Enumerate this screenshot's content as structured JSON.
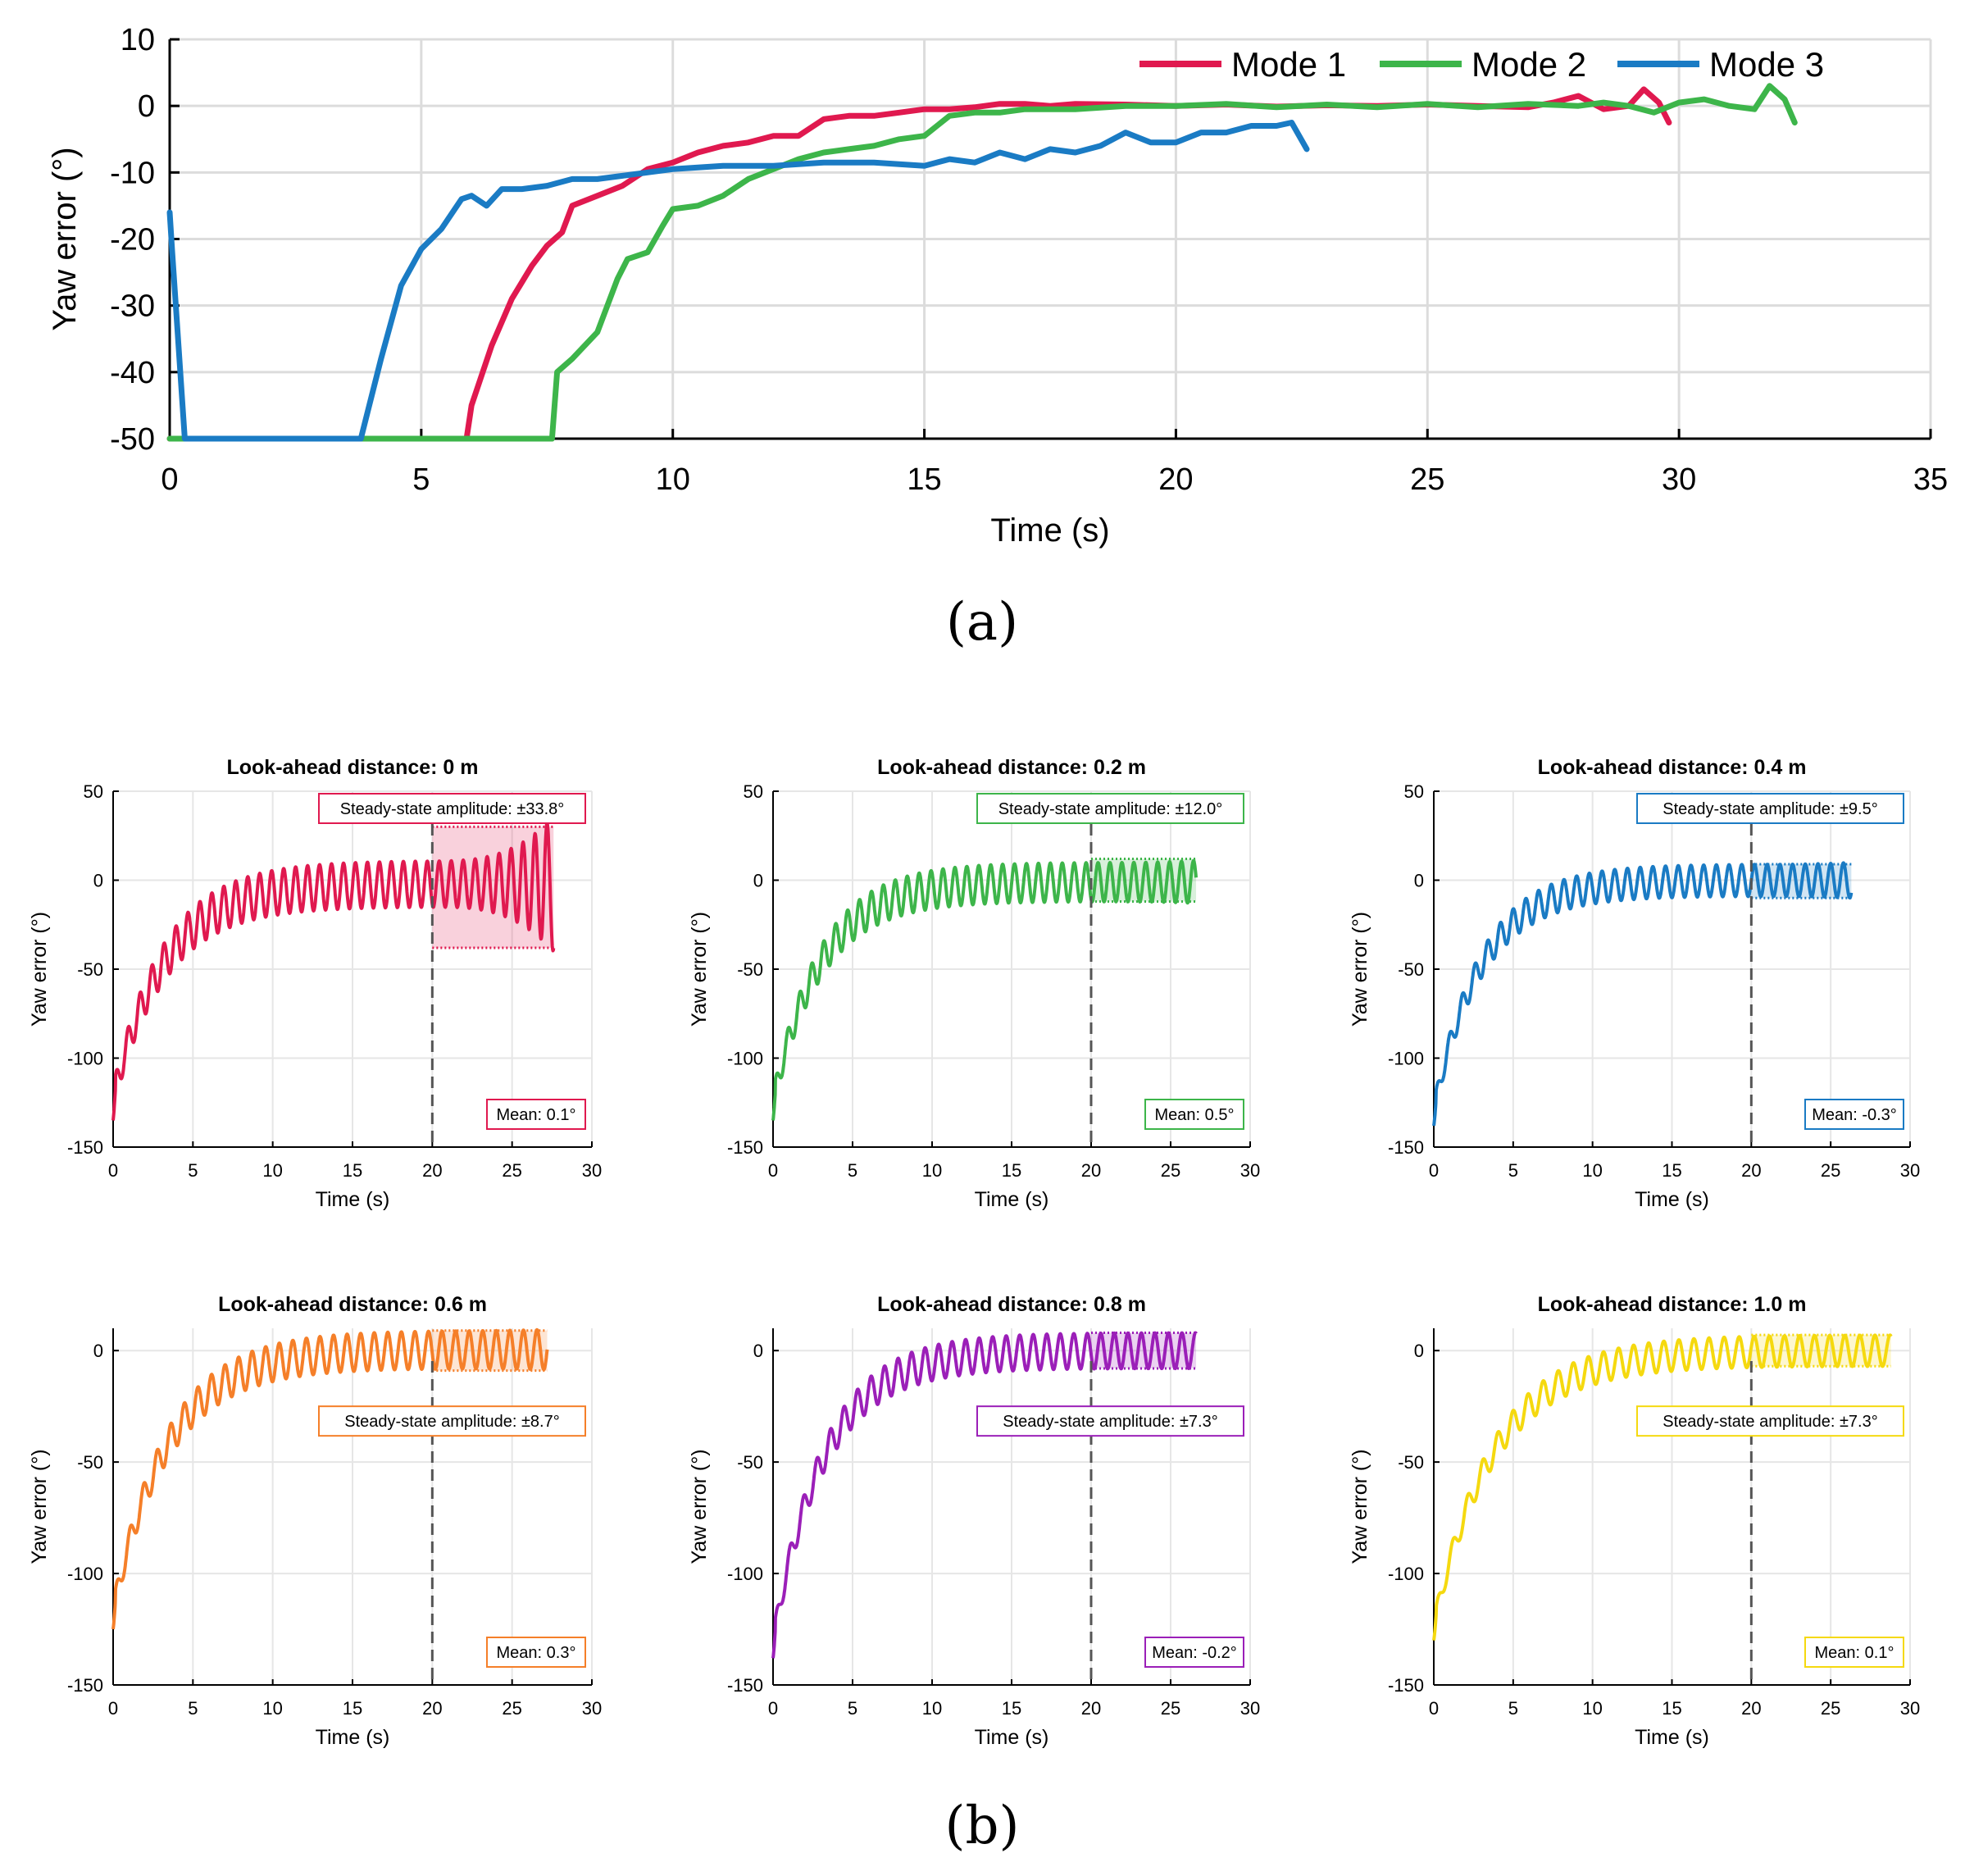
{
  "figure": {
    "label_a": "(a)",
    "label_b": "(b)"
  },
  "colors": {
    "mode1": "#e0194f",
    "mode2": "#3db54a",
    "mode3": "#1a7bc4",
    "sub": [
      "#e0194f",
      "#3db54a",
      "#1a7bc4",
      "#f57f29",
      "#9b1fb8",
      "#f5d90f"
    ],
    "grid": "#dcdcdc",
    "axis": "#000000"
  },
  "chart_data": [
    {
      "id": "a",
      "type": "line",
      "xlabel": "Time (s)",
      "ylabel": "Yaw error (°)",
      "xlim": [
        0,
        35
      ],
      "ylim": [
        -50,
        10
      ],
      "xticks": [
        0,
        5,
        10,
        15,
        20,
        25,
        30,
        35
      ],
      "yticks": [
        10,
        0,
        -10,
        -20,
        -30,
        -40,
        -50
      ],
      "grid": true,
      "legend": {
        "position": "top-right",
        "entries": [
          "Mode 1",
          "Mode 2",
          "Mode 3"
        ]
      },
      "series": [
        {
          "name": "Mode 1",
          "x": [
            0,
            0.2,
            5.9,
            6.0,
            6.4,
            6.8,
            7.2,
            7.5,
            7.8,
            8.0,
            8.5,
            9.0,
            9.5,
            10.0,
            10.5,
            11.0,
            11.5,
            12.0,
            12.5,
            13.0,
            13.5,
            14.0,
            14.5,
            15.0,
            15.5,
            16.0,
            16.5,
            17.0,
            17.5,
            18.0,
            19.0,
            20.0,
            21.0,
            22.0,
            23.0,
            24.0,
            25.0,
            26.0,
            27.0,
            27.5,
            28.0,
            28.5,
            29.0,
            29.3,
            29.6,
            29.8
          ],
          "y": [
            -50,
            -50,
            -50,
            -45,
            -36,
            -29,
            -24,
            -21,
            -19,
            -15,
            -13.5,
            -12,
            -9.5,
            -8.5,
            -7,
            -6,
            -5.5,
            -4.5,
            -4.5,
            -2,
            -1.5,
            -1.5,
            -1,
            -0.5,
            -0.5,
            -0.2,
            0.3,
            0.3,
            0,
            0.3,
            0.2,
            0,
            0.2,
            -0.1,
            0.1,
            0,
            0.2,
            0,
            -0.2,
            0.5,
            1.5,
            -0.5,
            0,
            2.5,
            0.5,
            -2.5
          ]
        },
        {
          "name": "Mode 2",
          "x": [
            0,
            0.3,
            7.6,
            7.7,
            8.0,
            8.5,
            8.9,
            9.1,
            9.5,
            9.8,
            10.0,
            10.5,
            11.0,
            11.5,
            12.0,
            12.5,
            13.0,
            13.5,
            14.0,
            14.5,
            15.0,
            15.5,
            16.0,
            16.5,
            17.0,
            18.0,
            19.0,
            20.0,
            21.0,
            22.0,
            23.0,
            24.0,
            25.0,
            26.0,
            27.0,
            28.0,
            28.5,
            29.0,
            29.5,
            30.0,
            30.5,
            31.0,
            31.5,
            31.8,
            32.1,
            32.3
          ],
          "y": [
            -50,
            -50,
            -50,
            -40,
            -38,
            -34,
            -26,
            -23,
            -22,
            -18,
            -15.5,
            -15,
            -13.5,
            -11,
            -9.5,
            -8,
            -7,
            -6.5,
            -6,
            -5,
            -4.5,
            -1.5,
            -1,
            -1,
            -0.5,
            -0.5,
            0,
            0,
            0.3,
            -0.2,
            0.2,
            -0.2,
            0.3,
            -0.2,
            0.3,
            0,
            0.5,
            0,
            -1,
            0.5,
            1,
            0,
            -0.5,
            3,
            1,
            -2.5
          ]
        },
        {
          "name": "Mode 3",
          "x": [
            0,
            0.05,
            0.3,
            0.5,
            3.8,
            4.2,
            4.6,
            5.0,
            5.4,
            5.8,
            6.0,
            6.3,
            6.6,
            7.0,
            7.5,
            8.0,
            8.5,
            9.0,
            9.5,
            10.0,
            11.0,
            12.0,
            13.0,
            14.0,
            15.0,
            15.5,
            16.0,
            16.5,
            17.0,
            17.5,
            18.0,
            18.5,
            19.0,
            19.5,
            20.0,
            20.5,
            21.0,
            21.5,
            22.0,
            22.3,
            22.6
          ],
          "y": [
            -16,
            -22,
            -50,
            -50,
            -50,
            -38,
            -27,
            -21.5,
            -18.5,
            -14,
            -13.5,
            -15,
            -12.5,
            -12.5,
            -12,
            -11,
            -11,
            -10.5,
            -10,
            -9.5,
            -9,
            -9,
            -8.5,
            -8.5,
            -9,
            -8,
            -8.5,
            -7,
            -8,
            -6.5,
            -7,
            -6,
            -4,
            -5.5,
            -5.5,
            -4,
            -4,
            -3,
            -3,
            -2.5,
            -6.5
          ]
        }
      ]
    },
    {
      "id": "b1",
      "type": "line",
      "title": "Look-ahead distance: 0 m",
      "xlabel": "Time (s)",
      "ylabel": "Yaw error (°)",
      "xlim": [
        0,
        30
      ],
      "ylim": [
        -150,
        50
      ],
      "xticks": [
        0,
        5,
        10,
        15,
        20,
        25,
        30
      ],
      "yticks": [
        50,
        0,
        -50,
        -100,
        -150
      ],
      "y_start": -135,
      "envelope_max": 11,
      "envelope_min": -15,
      "tau": 3.2,
      "period": 0.75,
      "t_end": 27.6,
      "steady_start": 20,
      "steady_max": 30,
      "steady_min": -38,
      "amp_text": "Steady-state amplitude: ±33.8°",
      "amp_box_position": "top",
      "mean_text": "Mean: 0.1°"
    },
    {
      "id": "b2",
      "type": "line",
      "title": "Look-ahead distance: 0.2 m",
      "xlabel": "Time (s)",
      "ylabel": "Yaw error (°)",
      "xlim": [
        0,
        30
      ],
      "ylim": [
        -150,
        50
      ],
      "xticks": [
        0,
        5,
        10,
        15,
        20,
        25,
        30
      ],
      "yticks": [
        50,
        0,
        -50,
        -100,
        -150
      ],
      "y_start": -135,
      "envelope_max": 10,
      "envelope_min": -12,
      "tau": 3.0,
      "period": 0.75,
      "t_end": 26.6,
      "steady_start": 20,
      "steady_max": 12,
      "steady_min": -12,
      "amp_text": "Steady-state amplitude: ±12.0°",
      "amp_box_position": "top",
      "mean_text": "Mean: 0.5°"
    },
    {
      "id": "b3",
      "type": "line",
      "title": "Look-ahead distance: 0.4 m",
      "xlabel": "Time (s)",
      "ylabel": "Yaw error (°)",
      "xlim": [
        0,
        30
      ],
      "ylim": [
        -150,
        50
      ],
      "xticks": [
        0,
        5,
        10,
        15,
        20,
        25,
        30
      ],
      "yticks": [
        50,
        0,
        -50,
        -100,
        -150
      ],
      "y_start": -138,
      "envelope_max": 9,
      "envelope_min": -9,
      "tau": 3.0,
      "period": 0.8,
      "t_end": 26.3,
      "steady_start": 20,
      "steady_max": 9,
      "steady_min": -10,
      "amp_text": "Steady-state amplitude: ±9.5°",
      "amp_box_position": "top",
      "mean_text": "Mean: -0.3°"
    },
    {
      "id": "b4",
      "type": "line",
      "title": "Look-ahead distance: 0.6 m",
      "xlabel": "Time (s)",
      "ylabel": "Yaw error (°)",
      "xlim": [
        0,
        30
      ],
      "ylim": [
        -150,
        10
      ],
      "xticks": [
        0,
        5,
        10,
        15,
        20,
        25,
        30
      ],
      "yticks": [
        0,
        -50,
        -100,
        -150
      ],
      "y_start": -125,
      "envelope_max": 9,
      "envelope_min": -8,
      "tau": 3.4,
      "period": 0.85,
      "t_end": 27.2,
      "steady_start": 20,
      "steady_max": 9,
      "steady_min": -9,
      "amp_text": "Steady-state amplitude: ±8.7°",
      "amp_box_position": "bottom",
      "mean_text": "Mean: 0.3°"
    },
    {
      "id": "b5",
      "type": "line",
      "title": "Look-ahead distance: 0.8 m",
      "xlabel": "Time (s)",
      "ylabel": "Yaw error (°)",
      "xlim": [
        0,
        30
      ],
      "ylim": [
        -150,
        10
      ],
      "xticks": [
        0,
        5,
        10,
        15,
        20,
        25,
        30
      ],
      "yticks": [
        0,
        -50,
        -100,
        -150
      ],
      "y_start": -138,
      "envelope_max": 8,
      "envelope_min": -8,
      "tau": 3.2,
      "period": 0.85,
      "t_end": 26.6,
      "steady_start": 20,
      "steady_max": 8,
      "steady_min": -8,
      "amp_text": "Steady-state amplitude: ±7.3°",
      "amp_box_position": "bottom",
      "mean_text": "Mean: -0.2°"
    },
    {
      "id": "b6",
      "type": "line",
      "title": "Look-ahead distance: 1.0 m",
      "xlabel": "Time (s)",
      "ylabel": "Yaw error (°)",
      "xlim": [
        0,
        30
      ],
      "ylim": [
        -150,
        10
      ],
      "xticks": [
        0,
        5,
        10,
        15,
        20,
        25,
        30
      ],
      "yticks": [
        0,
        -50,
        -100,
        -150
      ],
      "y_start": -130,
      "envelope_max": 7,
      "envelope_min": -7,
      "tau": 3.8,
      "period": 0.95,
      "t_end": 28.8,
      "steady_start": 20,
      "steady_max": 7,
      "steady_min": -7,
      "amp_text": "Steady-state amplitude: ±7.3°",
      "amp_box_position": "bottom",
      "mean_text": "Mean: 0.1°"
    }
  ]
}
